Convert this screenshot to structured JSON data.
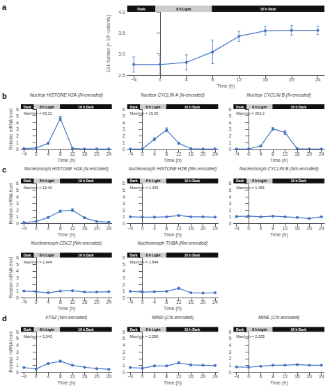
{
  "chart_data": [
    {
      "type": "line",
      "panel_label": "a",
      "xlabel": "Time (h)",
      "ylabel": "Cell number (× 10⁶ cells/mL)",
      "x": [
        -4,
        0,
        4,
        8,
        12,
        16,
        20,
        24
      ],
      "series": [
        {
          "color": "#4472C4",
          "marker": "circle",
          "values": [
            2.75,
            2.75,
            2.8,
            3.05,
            3.42,
            3.55,
            3.56,
            3.56
          ],
          "errors": [
            0.18,
            0.22,
            0.18,
            0.28,
            0.12,
            0.1,
            0.12,
            0.1
          ]
        }
      ],
      "xlim": [
        -5,
        25
      ],
      "xticks": [
        {
          "value": -4,
          "label": "−4"
        },
        0,
        4,
        8,
        12,
        16,
        20,
        24
      ],
      "ylim": [
        2.5,
        4.0
      ],
      "yticks": [
        2.5,
        {
          "value": 3.0,
          "label": "3.0"
        },
        3.5,
        {
          "value": 4.0,
          "label": "4.0"
        }
      ],
      "grid": false,
      "phases": [
        {
          "label": "Dark",
          "fraction": 0.143,
          "color": "#111111"
        },
        {
          "label": "8 h Light",
          "fraction": 0.286,
          "color": "#cccccc"
        },
        {
          "label": "16 h Dark",
          "fraction": 0.571,
          "color": "#111111"
        }
      ]
    },
    {
      "type": "line",
      "panel_label": "b",
      "title": "Nuclear HISTONE H2A (N-encoded)",
      "annotation": "Max/min = 63.22",
      "xlabel": "Time (h)",
      "ylabel": "Relative mRNA level",
      "x": [
        -4,
        0,
        4,
        8,
        12,
        16,
        20,
        24
      ],
      "series": [
        {
          "color": "#4472C4",
          "marker": "circle",
          "values": [
            0.1,
            0.2,
            0.9,
            4.6,
            0.15,
            0.05,
            0.05,
            0.05
          ],
          "errors": [
            0.05,
            0.05,
            0.15,
            0.3,
            0.05,
            0.02,
            0.02,
            0.02
          ]
        }
      ],
      "xlim": [
        -5,
        25
      ],
      "xticks": [
        {
          "value": -4,
          "label": "−4"
        },
        0,
        4,
        8,
        12,
        16,
        20,
        24
      ],
      "ylim": [
        0,
        6
      ],
      "yticks": [
        0,
        1,
        2,
        3,
        4,
        5,
        6
      ],
      "grid": false,
      "phases": [
        {
          "label": "Dark",
          "fraction": 0.143,
          "color": "#111111"
        },
        {
          "label": "8 h Light",
          "fraction": 0.286,
          "color": "#cccccc"
        },
        {
          "label": "16 h Dark",
          "fraction": 0.571,
          "color": "#111111"
        }
      ]
    },
    {
      "type": "line",
      "title": "Nuclear CYCLIN A (N-encoded)",
      "annotation": "Max/min = 15.65",
      "xlabel": "Time (h)",
      "x": [
        -4,
        0,
        4,
        8,
        12,
        16,
        20,
        24
      ],
      "series": [
        {
          "color": "#4472C4",
          "marker": "circle",
          "values": [
            0.05,
            0.05,
            1.5,
            2.9,
            0.9,
            0.1,
            0.05,
            0.05
          ],
          "errors": [
            0.02,
            0.02,
            0.2,
            0.3,
            0.15,
            0.05,
            0.02,
            0.02
          ]
        }
      ],
      "xlim": [
        -5,
        25
      ],
      "xticks": [
        {
          "value": -4,
          "label": "−4"
        },
        0,
        4,
        8,
        12,
        16,
        20,
        24
      ],
      "ylim": [
        0,
        6
      ],
      "yticks": [
        0,
        1,
        2,
        3,
        4,
        5,
        6
      ],
      "grid": false,
      "phases": [
        {
          "label": "Dark",
          "fraction": 0.143,
          "color": "#111111"
        },
        {
          "label": "8 h Light",
          "fraction": 0.286,
          "color": "#cccccc"
        },
        {
          "label": "16 h Dark",
          "fraction": 0.571,
          "color": "#111111"
        }
      ]
    },
    {
      "type": "line",
      "title": "Nuclear CYCLIN B (N-encoded)",
      "annotation": "Max/min = 262.2",
      "xlabel": "Time (h)",
      "x": [
        -4,
        0,
        4,
        8,
        12,
        16,
        20,
        24
      ],
      "series": [
        {
          "color": "#4472C4",
          "marker": "circle",
          "values": [
            0.05,
            0.05,
            0.5,
            3.05,
            2.5,
            0.1,
            0.05,
            0.05
          ],
          "errors": [
            0.02,
            0.02,
            0.1,
            0.2,
            0.3,
            0.05,
            0.02,
            0.02
          ]
        }
      ],
      "xlim": [
        -5,
        25
      ],
      "xticks": [
        {
          "value": -4,
          "label": "−4"
        },
        0,
        4,
        8,
        12,
        16,
        20,
        24
      ],
      "ylim": [
        0,
        6
      ],
      "yticks": [
        0,
        1,
        2,
        3,
        4,
        5,
        6
      ],
      "grid": false,
      "phases": [
        {
          "label": "Dark",
          "fraction": 0.143,
          "color": "#111111"
        },
        {
          "label": "8 h Light",
          "fraction": 0.286,
          "color": "#cccccc"
        },
        {
          "label": "16 h Dark",
          "fraction": 0.571,
          "color": "#111111"
        }
      ]
    },
    {
      "type": "line",
      "panel_label": "c",
      "title": "Nucleomorph HISTONE H2A (N-encoded)",
      "annotation": "Max/min = 13.40",
      "xlabel": "Time (h)",
      "ylabel": "Relative mRNA level",
      "x": [
        -4,
        0,
        4,
        8,
        12,
        16,
        20,
        24
      ],
      "series": [
        {
          "color": "#4472C4",
          "marker": "circle",
          "values": [
            0.15,
            0.3,
            0.9,
            1.85,
            2.0,
            0.85,
            0.3,
            0.2
          ],
          "errors": [
            0.05,
            0.05,
            0.1,
            0.15,
            0.2,
            0.1,
            0.05,
            0.05
          ]
        }
      ],
      "xlim": [
        -5,
        25
      ],
      "xticks": [
        {
          "value": -4,
          "label": "−4"
        },
        0,
        4,
        8,
        12,
        16,
        20,
        24
      ],
      "ylim": [
        0,
        6
      ],
      "yticks": [
        0,
        1,
        2,
        3,
        4,
        5,
        6
      ],
      "grid": false,
      "phases": [
        {
          "label": "Dark",
          "fraction": 0.143,
          "color": "#111111"
        },
        {
          "label": "8 h Light",
          "fraction": 0.286,
          "color": "#cccccc"
        },
        {
          "label": "16 h Dark",
          "fraction": 0.571,
          "color": "#111111"
        }
      ]
    },
    {
      "type": "line",
      "title": "Nucleomorph HISTONE H2B (Nm-encoded)",
      "annotation": "Max/min = 1.425",
      "xlabel": "Time (h)",
      "x": [
        -4,
        0,
        4,
        8,
        12,
        16,
        20,
        24
      ],
      "series": [
        {
          "color": "#4472C4",
          "marker": "circle",
          "values": [
            1.0,
            0.95,
            0.95,
            1.0,
            1.2,
            1.0,
            1.0,
            0.95
          ],
          "errors": [
            0.05,
            0.05,
            0.05,
            0.05,
            0.1,
            0.05,
            0.05,
            0.05
          ]
        }
      ],
      "xlim": [
        -5,
        25
      ],
      "xticks": [
        {
          "value": -4,
          "label": "−4"
        },
        0,
        4,
        8,
        12,
        16,
        20,
        24
      ],
      "ylim": [
        0,
        6
      ],
      "yticks": [
        0,
        1,
        2,
        3,
        4,
        5,
        6
      ],
      "grid": false,
      "phases": [
        {
          "label": "Dark",
          "fraction": 0.143,
          "color": "#111111"
        },
        {
          "label": "8 h Light",
          "fraction": 0.286,
          "color": "#cccccc"
        },
        {
          "label": "16 h Dark",
          "fraction": 0.571,
          "color": "#111111"
        }
      ]
    },
    {
      "type": "line",
      "title": "Nucleomorph CYCLIN B (Nm-encoded)",
      "annotation": "Max/min = 1.481",
      "xlabel": "Time (h)",
      "x": [
        -4,
        0,
        4,
        8,
        12,
        16,
        20,
        24
      ],
      "series": [
        {
          "color": "#4472C4",
          "marker": "circle",
          "values": [
            1.05,
            1.1,
            1.0,
            1.1,
            1.0,
            0.9,
            0.75,
            1.0
          ],
          "errors": [
            0.1,
            0.1,
            0.05,
            0.1,
            0.05,
            0.05,
            0.05,
            0.05
          ]
        }
      ],
      "xlim": [
        -5,
        25
      ],
      "xticks": [
        {
          "value": -4,
          "label": "−4"
        },
        0,
        4,
        8,
        12,
        16,
        20,
        24
      ],
      "ylim": [
        0,
        6
      ],
      "yticks": [
        0,
        1,
        2,
        3,
        4,
        5,
        6
      ],
      "grid": false,
      "phases": [
        {
          "label": "Dark",
          "fraction": 0.143,
          "color": "#111111"
        },
        {
          "label": "8 h Light",
          "fraction": 0.286,
          "color": "#cccccc"
        },
        {
          "label": "16 h Dark",
          "fraction": 0.571,
          "color": "#111111"
        }
      ]
    },
    {
      "type": "line",
      "title": "Nucleomorph CDC2 (Nm-encoded)",
      "annotation": "Max/min = 1.444",
      "xlabel": "Time (h)",
      "ylabel": "Relative mRNA level",
      "x": [
        -4,
        0,
        4,
        8,
        12,
        16,
        20,
        24
      ],
      "series": [
        {
          "color": "#4472C4",
          "marker": "circle",
          "values": [
            1.0,
            0.9,
            0.75,
            1.0,
            1.05,
            0.85,
            0.85,
            0.9
          ],
          "errors": [
            0.1,
            0.05,
            0.05,
            0.05,
            0.05,
            0.05,
            0.05,
            0.05
          ]
        }
      ],
      "xlim": [
        -5,
        25
      ],
      "xticks": [
        {
          "value": -4,
          "label": "−4"
        },
        0,
        4,
        8,
        12,
        16,
        20,
        24
      ],
      "ylim": [
        0,
        6
      ],
      "yticks": [
        0,
        1,
        2,
        3,
        4,
        5,
        6
      ],
      "grid": false,
      "phases": [
        {
          "label": "Dark",
          "fraction": 0.143,
          "color": "#111111"
        },
        {
          "label": "8 h Light",
          "fraction": 0.286,
          "color": "#cccccc"
        },
        {
          "label": "16 h Dark",
          "fraction": 0.571,
          "color": "#111111"
        }
      ]
    },
    {
      "type": "line",
      "title": "Nucleomorph TUBA (Nm-encoded)",
      "annotation": "Max/min = 1.844",
      "xlabel": "Time (h)",
      "x": [
        -4,
        0,
        4,
        8,
        12,
        16,
        20,
        24
      ],
      "series": [
        {
          "color": "#4472C4",
          "marker": "circle",
          "values": [
            0.95,
            0.85,
            0.9,
            0.95,
            1.4,
            0.75,
            0.7,
            0.75
          ],
          "errors": [
            0.05,
            0.05,
            0.05,
            0.05,
            0.15,
            0.05,
            0.05,
            0.05
          ]
        }
      ],
      "xlim": [
        -5,
        25
      ],
      "xticks": [
        {
          "value": -4,
          "label": "−4"
        },
        0,
        4,
        8,
        12,
        16,
        20,
        24
      ],
      "ylim": [
        0,
        6
      ],
      "yticks": [
        0,
        1,
        2,
        3,
        4,
        5,
        6
      ],
      "grid": false,
      "phases": [
        {
          "label": "Dark",
          "fraction": 0.143,
          "color": "#111111"
        },
        {
          "label": "8 h Light",
          "fraction": 0.286,
          "color": "#cccccc"
        },
        {
          "label": "16 h Dark",
          "fraction": 0.571,
          "color": "#111111"
        }
      ]
    },
    {
      "type": "line",
      "panel_label": "d",
      "title": "FTSZ (Nm-encoded)",
      "annotation": "Max/min = 3.343",
      "xlabel": "Time (h)",
      "ylabel": "Relative mRNA level",
      "x": [
        -4,
        0,
        4,
        8,
        12,
        16,
        20,
        24
      ],
      "series": [
        {
          "color": "#4472C4",
          "marker": "circle",
          "values": [
            0.65,
            0.45,
            1.25,
            1.6,
            1.0,
            0.7,
            0.5,
            0.4
          ],
          "errors": [
            0.05,
            0.05,
            0.1,
            0.15,
            0.1,
            0.05,
            0.05,
            0.05
          ]
        }
      ],
      "xlim": [
        -5,
        25
      ],
      "xticks": [
        {
          "value": -4,
          "label": "−4"
        },
        0,
        4,
        8,
        12,
        16,
        20,
        24
      ],
      "ylim": [
        0,
        6
      ],
      "yticks": [
        0,
        1,
        2,
        3,
        4,
        5,
        6
      ],
      "grid": false,
      "phases": [
        {
          "label": "Dark",
          "fraction": 0.143,
          "color": "#111111"
        },
        {
          "label": "8 h Light",
          "fraction": 0.286,
          "color": "#cccccc"
        },
        {
          "label": "16 h Dark",
          "fraction": 0.571,
          "color": "#111111"
        }
      ]
    },
    {
      "type": "line",
      "title": "MIND (Chl-encoded)",
      "annotation": "Max/min = 2.265",
      "xlabel": "Time (h)",
      "x": [
        -4,
        0,
        4,
        8,
        12,
        16,
        20,
        24
      ],
      "series": [
        {
          "color": "#4472C4",
          "marker": "circle",
          "values": [
            0.65,
            0.55,
            0.9,
            0.9,
            1.35,
            1.05,
            1.0,
            0.95
          ],
          "errors": [
            0.05,
            0.05,
            0.1,
            0.1,
            0.15,
            0.1,
            0.1,
            0.1
          ]
        }
      ],
      "xlim": [
        -5,
        25
      ],
      "xticks": [
        {
          "value": -4,
          "label": "−4"
        },
        0,
        4,
        8,
        12,
        16,
        20,
        24
      ],
      "ylim": [
        0,
        6
      ],
      "yticks": [
        0,
        1,
        2,
        3,
        4,
        5,
        6
      ],
      "grid": false,
      "phases": [
        {
          "label": "Dark",
          "fraction": 0.143,
          "color": "#111111"
        },
        {
          "label": "8 h Light",
          "fraction": 0.286,
          "color": "#cccccc"
        },
        {
          "label": "16 h Dark",
          "fraction": 0.571,
          "color": "#111111"
        }
      ]
    },
    {
      "type": "line",
      "title": "MINE (Chl-encoded)",
      "annotation": "Max/min = 2.025",
      "xlabel": "Time (h)",
      "x": [
        -4,
        0,
        4,
        8,
        12,
        16,
        20,
        24
      ],
      "series": [
        {
          "color": "#4472C4",
          "marker": "circle",
          "values": [
            0.75,
            0.7,
            0.85,
            1.0,
            1.0,
            1.1,
            1.0,
            1.0
          ],
          "errors": [
            0.05,
            0.05,
            0.05,
            0.05,
            0.08,
            0.08,
            0.05,
            0.05
          ]
        }
      ],
      "xlim": [
        -5,
        25
      ],
      "xticks": [
        {
          "value": -4,
          "label": "−4"
        },
        0,
        4,
        8,
        12,
        16,
        20,
        24
      ],
      "ylim": [
        0,
        6
      ],
      "yticks": [
        0,
        1,
        2,
        3,
        4,
        5,
        6
      ],
      "grid": false,
      "phases": [
        {
          "label": "Dark",
          "fraction": 0.143,
          "color": "#111111"
        },
        {
          "label": "8 h Light",
          "fraction": 0.286,
          "color": "#cccccc"
        },
        {
          "label": "16 h Dark",
          "fraction": 0.571,
          "color": "#111111"
        }
      ]
    }
  ]
}
